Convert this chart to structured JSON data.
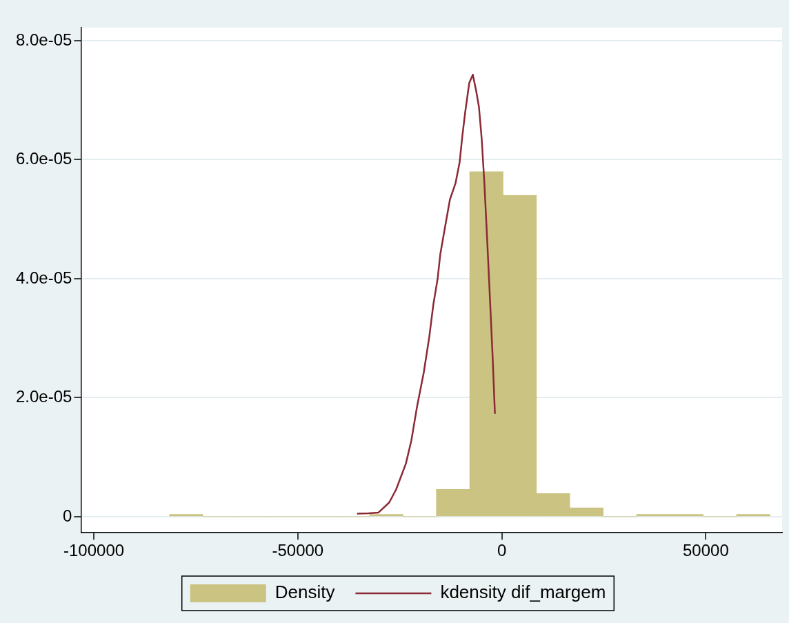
{
  "chart_data": {
    "type": "histogram",
    "bins": [
      -81460,
      -73283,
      -65106,
      -56929,
      -48752,
      -40575,
      -32398,
      -24221,
      -16044,
      -7867,
      310,
      8487,
      16664,
      24841,
      33018,
      41195,
      49372,
      57549,
      65726
    ],
    "series": [
      {
        "name": "Density",
        "color": "#cbc382",
        "values": [
          4e-07,
          0,
          0,
          0,
          0,
          0,
          4e-07,
          0,
          4.6e-06,
          5.8e-05,
          5.4e-05,
          3.9e-06,
          1.5e-06,
          0,
          4e-07,
          4e-07,
          0,
          4e-07
        ]
      },
      {
        "type": "line",
        "name": "kdensity dif_margem",
        "color": "#8b2a35",
        "x": [
          -35480,
          -32650,
          -30280,
          -27580,
          -25890,
          -23520,
          -22170,
          -20830,
          -19140,
          -17780,
          -16770,
          -15750,
          -15080,
          -14060,
          -12720,
          -11360,
          -10350,
          -9670,
          -8990,
          -7980,
          -7100,
          -6290,
          -5610,
          -4930,
          -4270,
          -3590,
          -2910,
          -2240,
          -1690
        ],
        "values": [
          5.2e-07,
          5.7e-07,
          6.8e-07,
          2.4e-06,
          4.6e-06,
          8.9e-06,
          1.28e-05,
          1.83e-05,
          2.42e-05,
          3.02e-05,
          3.57e-05,
          3.99e-05,
          4.41e-05,
          4.81e-05,
          5.33e-05,
          5.6e-05,
          5.95e-05,
          6.4e-05,
          6.79e-05,
          7.29e-05,
          7.43e-05,
          7.16e-05,
          6.89e-05,
          6.35e-05,
          5.6e-05,
          4.66e-05,
          3.67e-05,
          2.67e-05,
          1.73e-05
        ]
      }
    ],
    "xlim": [
      -103150,
      68700
    ],
    "xticks": [
      -100000,
      -50000,
      0,
      50000
    ],
    "ylim": [
      -2.7e-06,
      8.22e-05
    ],
    "yticks": [
      0,
      {
        "value": 2e-05,
        "label": "2.0e-05"
      },
      {
        "value": 4e-05,
        "label": "4.0e-05"
      },
      {
        "value": 6e-05,
        "label": "6.0e-05"
      },
      {
        "value": 8e-05,
        "label": "8.0e-05"
      }
    ],
    "grid": "y",
    "legend": "bottom",
    "marker": "none",
    "line_style": "solid"
  }
}
